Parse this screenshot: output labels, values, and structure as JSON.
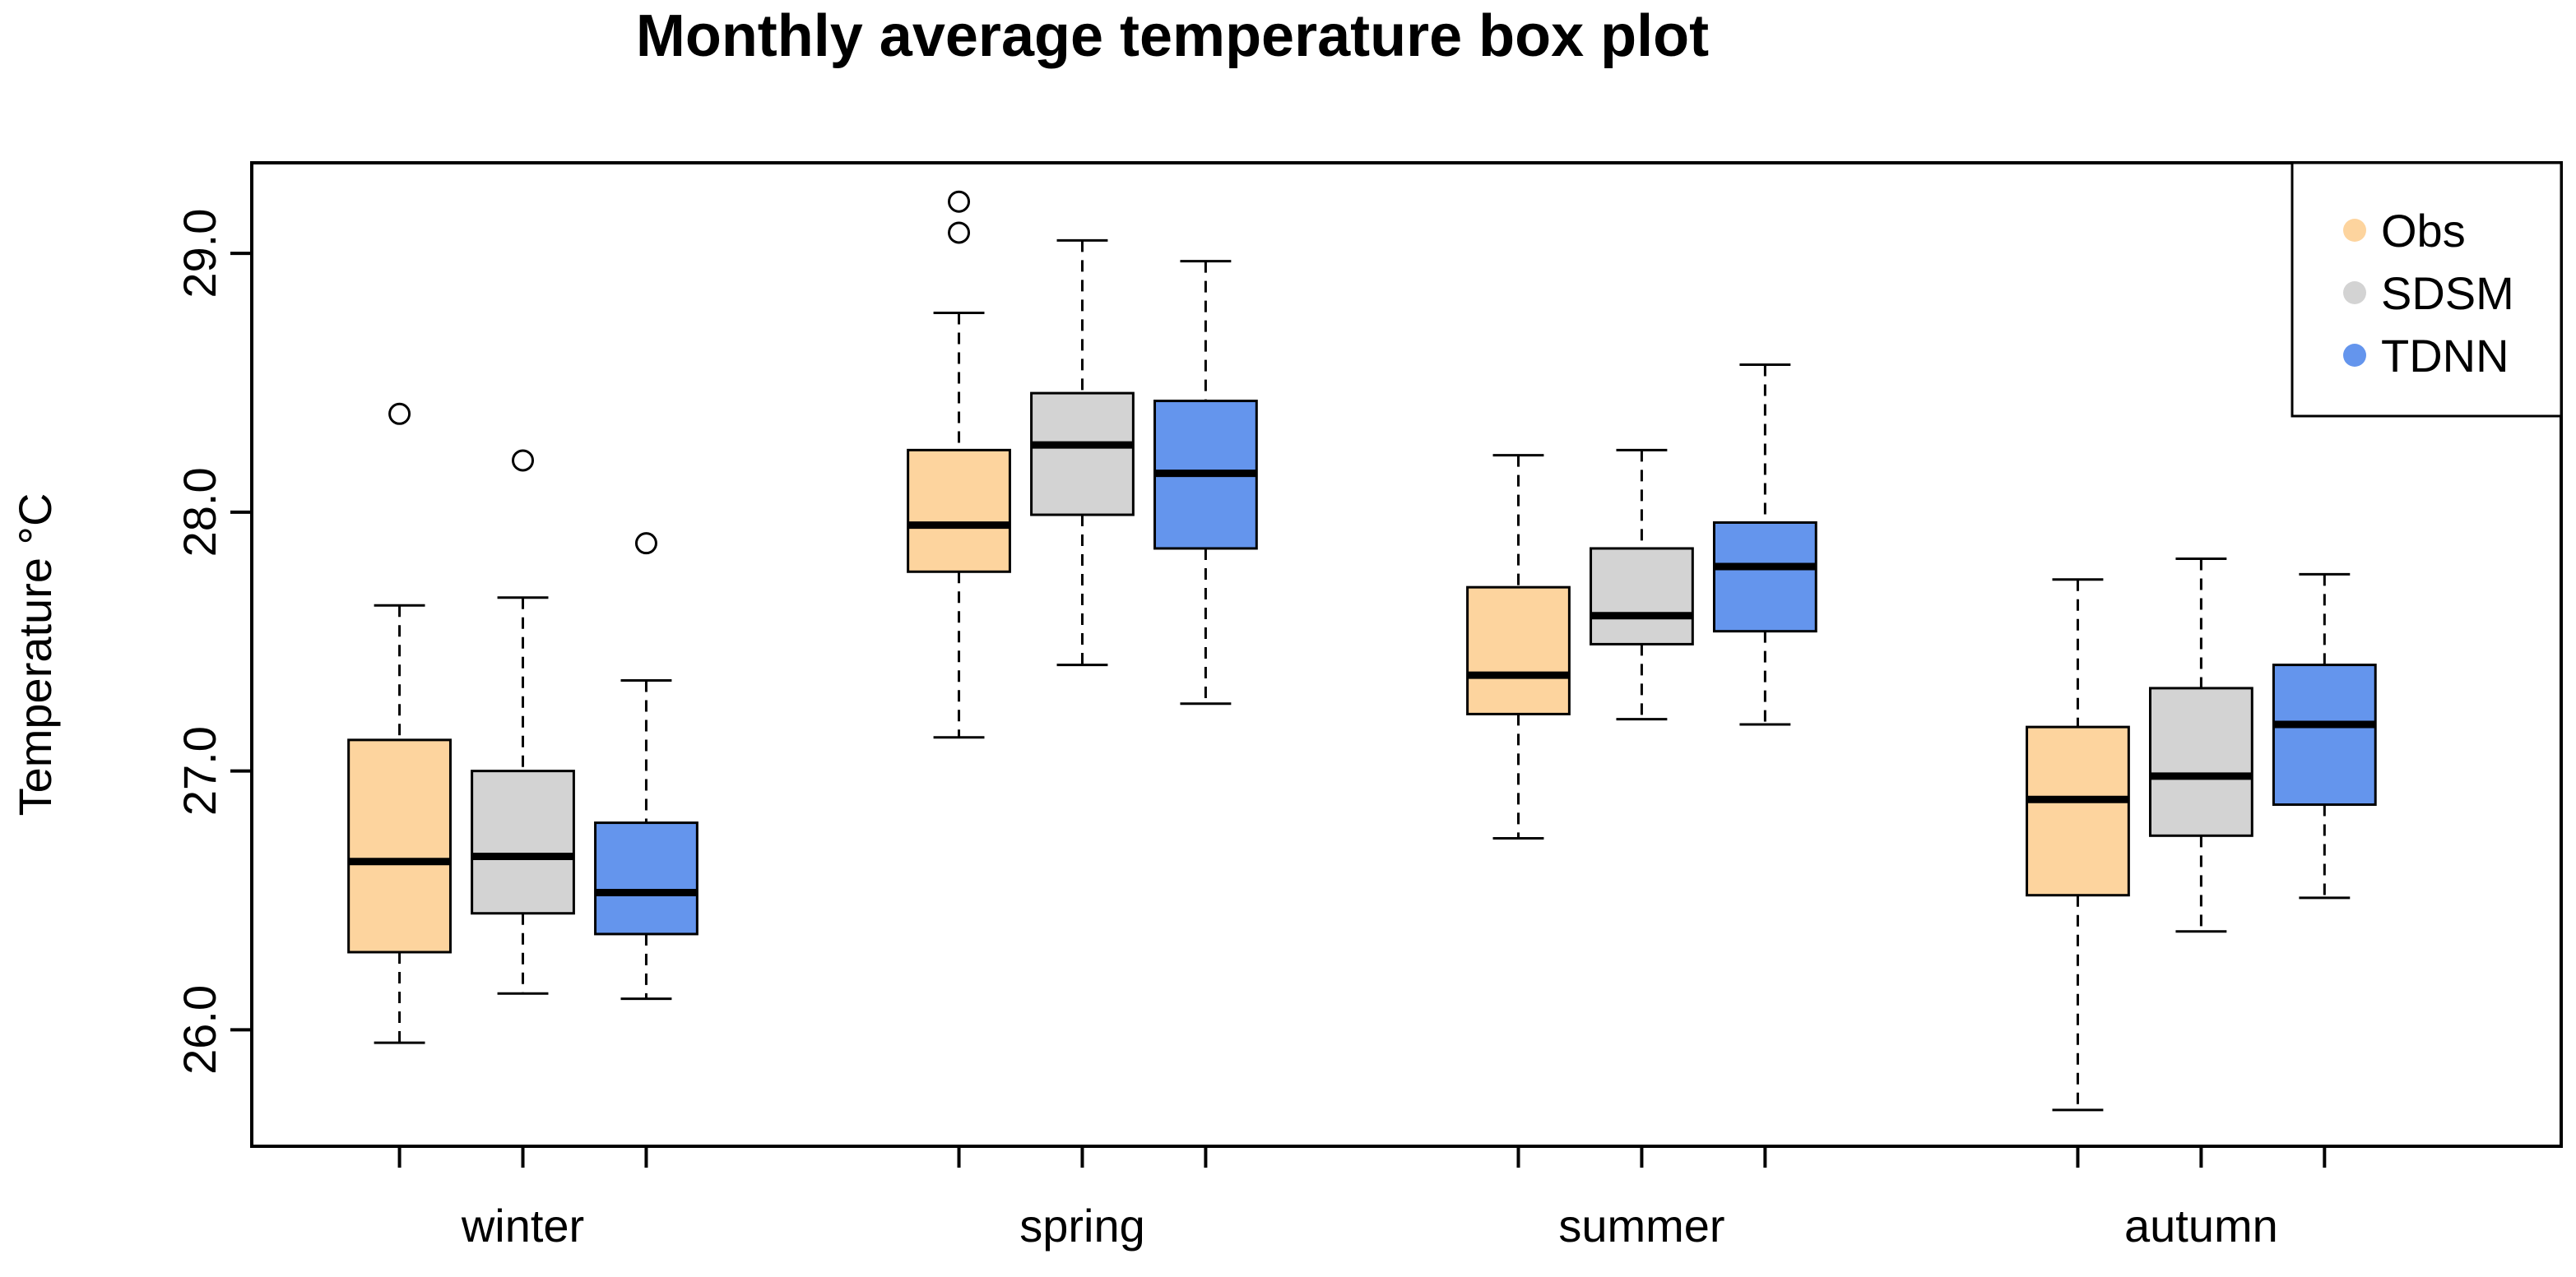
{
  "chart_data": {
    "type": "boxplot",
    "title": "Monthly average temperature box plot",
    "xlabel": "",
    "ylabel": "Temperature °C",
    "ylim": [
      25.55,
      29.35
    ],
    "yticks": [
      26.0,
      27.0,
      28.0,
      29.0
    ],
    "ytick_labels": [
      "26.0",
      "27.0",
      "28.0",
      "29.0"
    ],
    "categories": [
      "winter",
      "spring",
      "summer",
      "autumn"
    ],
    "legend": {
      "position": "top-right"
    },
    "grid": false,
    "series": [
      {
        "name": "Obs",
        "color": "#FDD49E",
        "boxes": [
          {
            "whisker_low": 25.95,
            "q1": 26.3,
            "median": 26.65,
            "q3": 27.12,
            "whisker_high": 27.64,
            "outliers": [
              28.38
            ]
          },
          {
            "whisker_low": 27.13,
            "q1": 27.77,
            "median": 27.95,
            "q3": 28.24,
            "whisker_high": 28.77,
            "outliers": [
              29.08,
              29.2
            ]
          },
          {
            "whisker_low": 26.74,
            "q1": 27.22,
            "median": 27.37,
            "q3": 27.71,
            "whisker_high": 28.22,
            "outliers": []
          },
          {
            "whisker_low": 25.69,
            "q1": 26.52,
            "median": 26.89,
            "q3": 27.17,
            "whisker_high": 27.74,
            "outliers": []
          }
        ]
      },
      {
        "name": "SDSM",
        "color": "#D3D3D3",
        "boxes": [
          {
            "whisker_low": 26.14,
            "q1": 26.45,
            "median": 26.67,
            "q3": 27.0,
            "whisker_high": 27.67,
            "outliers": [
              28.2
            ]
          },
          {
            "whisker_low": 27.41,
            "q1": 27.99,
            "median": 28.26,
            "q3": 28.46,
            "whisker_high": 29.05,
            "outliers": []
          },
          {
            "whisker_low": 27.2,
            "q1": 27.49,
            "median": 27.6,
            "q3": 27.86,
            "whisker_high": 28.24,
            "outliers": []
          },
          {
            "whisker_low": 26.38,
            "q1": 26.75,
            "median": 26.98,
            "q3": 27.32,
            "whisker_high": 27.82,
            "outliers": []
          }
        ]
      },
      {
        "name": "TDNN",
        "color": "#6495ED",
        "boxes": [
          {
            "whisker_low": 26.12,
            "q1": 26.37,
            "median": 26.53,
            "q3": 26.8,
            "whisker_high": 27.35,
            "outliers": [
              27.88
            ]
          },
          {
            "whisker_low": 27.26,
            "q1": 27.86,
            "median": 28.15,
            "q3": 28.43,
            "whisker_high": 28.97,
            "outliers": []
          },
          {
            "whisker_low": 27.18,
            "q1": 27.54,
            "median": 27.79,
            "q3": 27.96,
            "whisker_high": 28.57,
            "outliers": []
          },
          {
            "whisker_low": 26.51,
            "q1": 26.87,
            "median": 27.18,
            "q3": 27.41,
            "whisker_high": 27.76,
            "outliers": []
          }
        ]
      }
    ]
  }
}
